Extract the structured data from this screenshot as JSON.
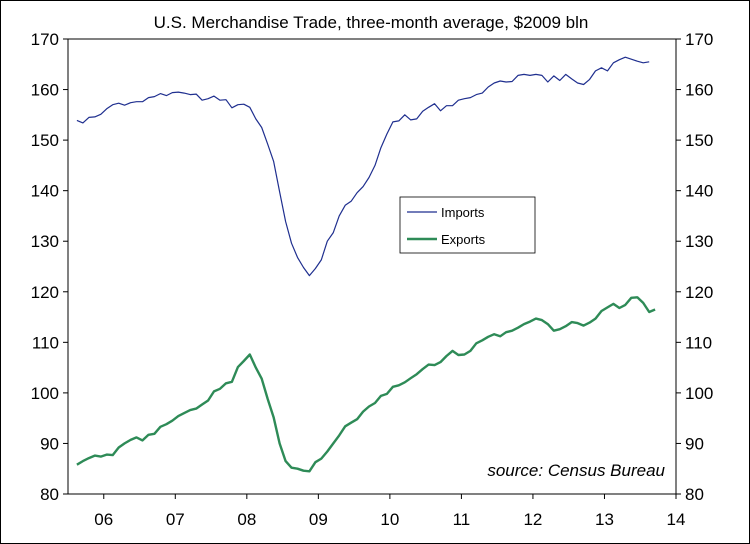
{
  "chart_data": {
    "type": "line",
    "title": "U.S. Merchandise Trade, three-month average, $2009 bln",
    "xlabel": "",
    "ylabel": "",
    "ylim": [
      80,
      170
    ],
    "yticks": [
      80,
      90,
      100,
      110,
      120,
      130,
      140,
      150,
      160,
      170
    ],
    "xlim": [
      2006.0,
      2014.5
    ],
    "xticks": [
      {
        "label": "06",
        "x": 2006.5
      },
      {
        "label": "07",
        "x": 2007.5
      },
      {
        "label": "08",
        "x": 2008.5
      },
      {
        "label": "09",
        "x": 2009.5
      },
      {
        "label": "10",
        "x": 2010.5
      },
      {
        "label": "11",
        "x": 2011.5
      },
      {
        "label": "12",
        "x": 2012.5
      },
      {
        "label": "13",
        "x": 2013.5
      },
      {
        "label": "14",
        "x": 2014.5
      }
    ],
    "x_start": 2006.125,
    "x_step": 0.0833333,
    "grid": false,
    "legend_position": "center-right",
    "annotation": "source: Census Bureau",
    "series": [
      {
        "name": "Imports",
        "color": "#1f2f8f",
        "values": [
          153.9,
          153.4,
          154.5,
          154.6,
          155.1,
          156.2,
          157.0,
          157.3,
          156.9,
          157.4,
          157.6,
          157.6,
          158.4,
          158.6,
          159.2,
          158.8,
          159.4,
          159.5,
          159.3,
          159.0,
          159.1,
          157.9,
          158.2,
          158.7,
          157.9,
          158.0,
          156.4,
          157.0,
          157.1,
          156.5,
          154.2,
          152.5,
          149.2,
          145.8,
          139.8,
          133.9,
          129.6,
          126.8,
          124.8,
          123.2,
          124.6,
          126.3,
          130.0,
          131.7,
          135.0,
          137.1,
          137.9,
          139.6,
          140.8,
          142.6,
          145.0,
          148.5,
          151.2,
          153.6,
          153.8,
          155.0,
          154.0,
          154.2,
          155.7,
          156.5,
          157.2,
          155.8,
          156.8,
          156.8,
          157.9,
          158.2,
          158.4,
          159.0,
          159.3,
          160.5,
          161.3,
          161.7,
          161.5,
          161.6,
          162.8,
          163.0,
          162.8,
          163.0,
          162.8,
          161.5,
          162.7,
          161.8,
          163.0,
          162.1,
          161.3,
          161.0,
          162.0,
          163.7,
          164.3,
          163.7,
          165.3,
          165.9,
          166.4,
          166.0,
          165.6,
          165.3,
          165.5
        ]
      },
      {
        "name": "Exports",
        "color": "#2e8b57",
        "values": [
          85.8,
          86.5,
          87.1,
          87.6,
          87.4,
          87.8,
          87.7,
          89.2,
          90.0,
          90.7,
          91.2,
          90.6,
          91.7,
          91.9,
          93.3,
          93.8,
          94.5,
          95.4,
          96.0,
          96.6,
          96.9,
          97.7,
          98.5,
          100.3,
          100.8,
          101.9,
          102.2,
          105.1,
          106.3,
          107.6,
          105.0,
          102.8,
          98.8,
          95.2,
          90.0,
          86.5,
          85.2,
          85.0,
          84.6,
          84.5,
          86.3,
          87.0,
          88.4,
          90.0,
          91.6,
          93.4,
          94.1,
          94.8,
          96.3,
          97.3,
          98.0,
          99.4,
          99.8,
          101.2,
          101.5,
          102.1,
          102.9,
          103.7,
          104.7,
          105.6,
          105.5,
          106.1,
          107.3,
          108.3,
          107.5,
          107.6,
          108.3,
          109.8,
          110.4,
          111.1,
          111.6,
          111.2,
          112.0,
          112.3,
          112.9,
          113.6,
          114.1,
          114.7,
          114.4,
          113.6,
          112.3,
          112.6,
          113.2,
          114.0,
          113.8,
          113.3,
          113.9,
          114.7,
          116.2,
          116.9,
          117.6,
          116.8,
          117.4,
          118.8,
          118.9,
          117.8,
          116.0,
          116.5
        ]
      }
    ]
  }
}
